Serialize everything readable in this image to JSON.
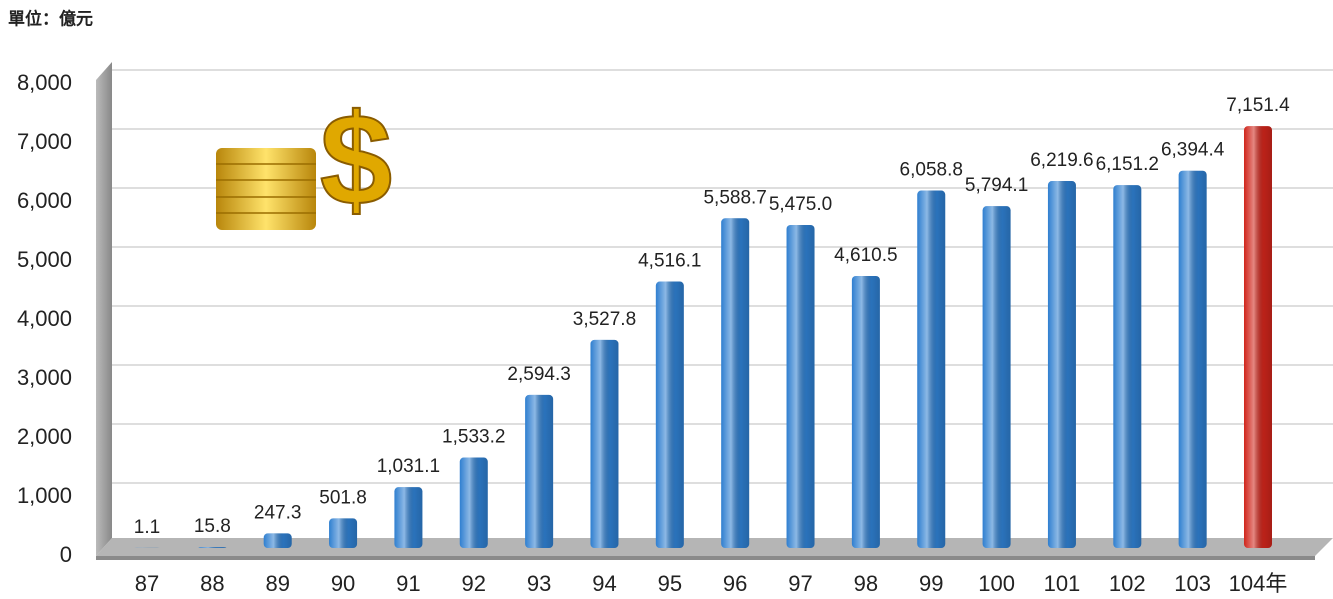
{
  "chart_data": {
    "type": "bar",
    "unit_label": "單位：億元",
    "categories": [
      "87",
      "88",
      "89",
      "90",
      "91",
      "92",
      "93",
      "94",
      "95",
      "96",
      "97",
      "98",
      "99",
      "100",
      "101",
      "102",
      "103",
      "104年"
    ],
    "values": [
      1.1,
      15.8,
      247.3,
      501.8,
      1031.1,
      1533.2,
      2594.3,
      3527.8,
      4516.1,
      5588.7,
      5475.0,
      4610.5,
      6058.8,
      5794.1,
      6219.6,
      6151.2,
      6394.4,
      7151.4
    ],
    "value_labels": [
      "1.1",
      "15.8",
      "247.3",
      "501.8",
      "1,031.1",
      "1,533.2",
      "2,594.3",
      "3,527.8",
      "4,516.1",
      "5,588.7",
      "5,475.0",
      "4,610.5",
      "6,058.8",
      "5,794.1",
      "6,219.6",
      "6,151.2",
      "6,394.4",
      "7,151.4"
    ],
    "colors": [
      "#2f7fd0",
      "#2f7fd0",
      "#2f7fd0",
      "#2f7fd0",
      "#2f7fd0",
      "#2f7fd0",
      "#2f7fd0",
      "#2f7fd0",
      "#2f7fd0",
      "#2f7fd0",
      "#2f7fd0",
      "#2f7fd0",
      "#2f7fd0",
      "#2f7fd0",
      "#2f7fd0",
      "#2f7fd0",
      "#2f7fd0",
      "#d0251b"
    ],
    "ylim": [
      0,
      8000
    ],
    "yticks": [
      0,
      {
        "value": 1000,
        "label": "1,000"
      },
      {
        "value": 2000,
        "label": "2,000"
      },
      {
        "value": 3000,
        "label": "3,000"
      },
      {
        "value": 4000,
        "label": "4,000"
      },
      {
        "value": 5000,
        "label": "5,000"
      },
      {
        "value": 6000,
        "label": "6,000"
      },
      {
        "value": 7000,
        "label": "7,000"
      },
      {
        "value": 8000,
        "label": "8,000"
      }
    ],
    "grid": true
  }
}
